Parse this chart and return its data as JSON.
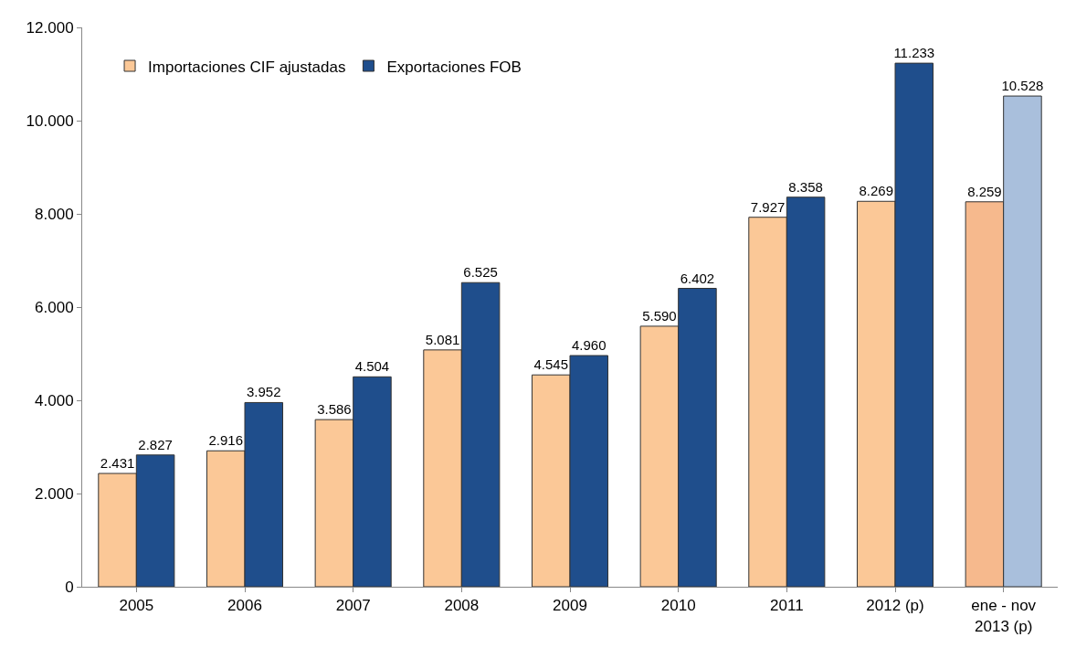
{
  "chart_data": {
    "type": "bar",
    "categories": [
      "2005",
      "2006",
      "2007",
      "2008",
      "2009",
      "2010",
      "2011",
      "2012 (p)",
      "ene - nov 2013 (p)"
    ],
    "series": [
      {
        "name": "Importaciones CIF ajustadas",
        "colors": [
          "#fbc897",
          "#fbc897",
          "#fbc897",
          "#fbc897",
          "#fbc897",
          "#fbc897",
          "#fbc897",
          "#fbc897",
          "#f6b98d"
        ],
        "values": [
          2431,
          2916,
          3586,
          5081,
          4545,
          5590,
          7927,
          8269,
          8259
        ],
        "value_labels": [
          "2.431",
          "2.916",
          "3.586",
          "5.081",
          "4.545",
          "5.590",
          "7.927",
          "8.269",
          "8.259"
        ]
      },
      {
        "name": "Exportaciones FOB",
        "colors": [
          "#1f4e8c",
          "#1f4e8c",
          "#1f4e8c",
          "#1f4e8c",
          "#1f4e8c",
          "#1f4e8c",
          "#1f4e8c",
          "#1f4e8c",
          "#a9bfdc"
        ],
        "values": [
          2827,
          3952,
          4504,
          6525,
          4960,
          6402,
          8358,
          11233,
          10528
        ],
        "value_labels": [
          "2.827",
          "3.952",
          "4.504",
          "6.525",
          "4.960",
          "6.402",
          "8.358",
          "11.233",
          "10.528"
        ]
      }
    ],
    "ylim": [
      0,
      12000
    ],
    "yticks": [
      {
        "value": 0,
        "label": "0"
      },
      {
        "value": 2000,
        "label": "2.000"
      },
      {
        "value": 4000,
        "label": "4.000"
      },
      {
        "value": 6000,
        "label": "6.000"
      },
      {
        "value": 8000,
        "label": "8.000"
      },
      {
        "value": 10000,
        "label": "10.000"
      },
      {
        "value": 12000,
        "label": "12.000"
      }
    ],
    "grid": false,
    "legend": "top left"
  }
}
